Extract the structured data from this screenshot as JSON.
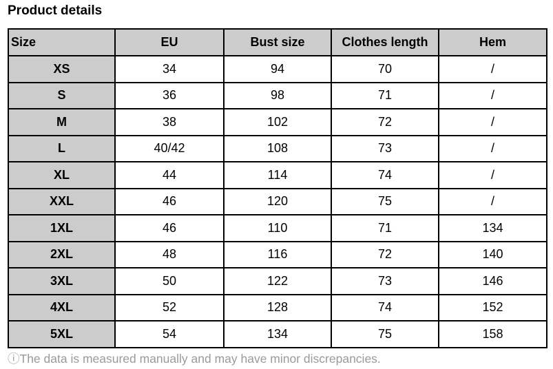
{
  "title": "Product details",
  "table": {
    "headers": [
      "Size",
      "EU",
      "Bust size",
      "Clothes length",
      "Hem"
    ],
    "rows": [
      [
        "XS",
        "34",
        "94",
        "70",
        "/"
      ],
      [
        "S",
        "36",
        "98",
        "71",
        "/"
      ],
      [
        "M",
        "38",
        "102",
        "72",
        "/"
      ],
      [
        "L",
        "40/42",
        "108",
        "73",
        "/"
      ],
      [
        "XL",
        "44",
        "114",
        "74",
        "/"
      ],
      [
        "XXL",
        "46",
        "120",
        "75",
        "/"
      ],
      [
        "1XL",
        "46",
        "110",
        "71",
        "134"
      ],
      [
        "2XL",
        "48",
        "116",
        "72",
        "140"
      ],
      [
        "3XL",
        "50",
        "122",
        "73",
        "146"
      ],
      [
        "4XL",
        "52",
        "128",
        "74",
        "152"
      ],
      [
        "5XL",
        "54",
        "134",
        "75",
        "158"
      ]
    ]
  },
  "note": "ⓘThe data is measured manually and may have minor discrepancies.",
  "colors": {
    "header_bg": "#cccccc",
    "note_text": "#9a9a9a"
  }
}
